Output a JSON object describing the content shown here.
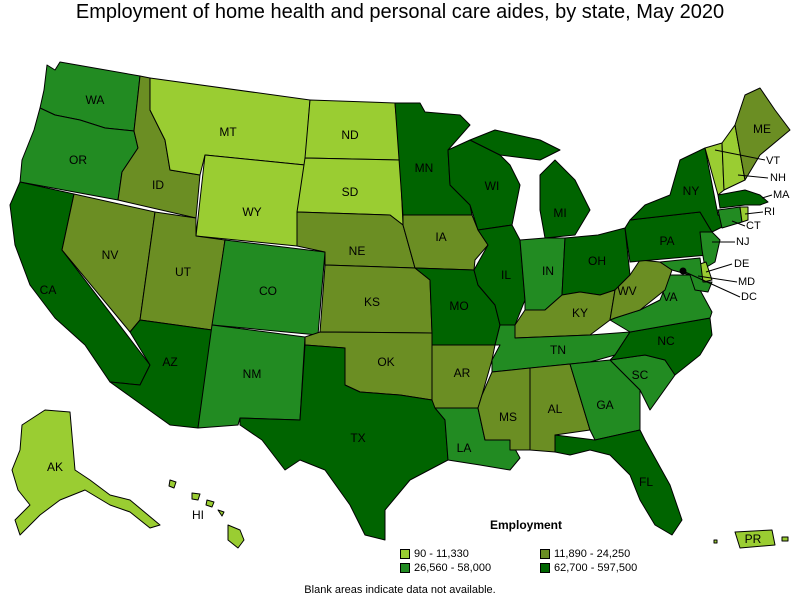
{
  "title": "Employment of home health and personal care aides, by state, May 2020",
  "legend": {
    "title": "Employment",
    "classes": [
      {
        "label": "90 - 11,330",
        "color": "#9acd32"
      },
      {
        "label": "11,890 - 24,250",
        "color": "#6b8e23"
      },
      {
        "label": "26,560 - 58,000",
        "color": "#228b22"
      },
      {
        "label": "62,700 - 597,500",
        "color": "#006400"
      }
    ]
  },
  "footnote": "Blank areas indicate data not available.",
  "states": [
    {
      "abbr": "WA",
      "class": 2
    },
    {
      "abbr": "OR",
      "class": 2
    },
    {
      "abbr": "CA",
      "class": 3
    },
    {
      "abbr": "ID",
      "class": 1
    },
    {
      "abbr": "NV",
      "class": 1
    },
    {
      "abbr": "MT",
      "class": 0
    },
    {
      "abbr": "WY",
      "class": 0
    },
    {
      "abbr": "UT",
      "class": 1
    },
    {
      "abbr": "AZ",
      "class": 3
    },
    {
      "abbr": "CO",
      "class": 2
    },
    {
      "abbr": "NM",
      "class": 2
    },
    {
      "abbr": "ND",
      "class": 0
    },
    {
      "abbr": "SD",
      "class": 0
    },
    {
      "abbr": "NE",
      "class": 1
    },
    {
      "abbr": "KS",
      "class": 1
    },
    {
      "abbr": "OK",
      "class": 1
    },
    {
      "abbr": "TX",
      "class": 3
    },
    {
      "abbr": "MN",
      "class": 3
    },
    {
      "abbr": "IA",
      "class": 1
    },
    {
      "abbr": "MO",
      "class": 3
    },
    {
      "abbr": "AR",
      "class": 1
    },
    {
      "abbr": "LA",
      "class": 2
    },
    {
      "abbr": "WI",
      "class": 3
    },
    {
      "abbr": "IL",
      "class": 3
    },
    {
      "abbr": "MI",
      "class": 3
    },
    {
      "abbr": "IN",
      "class": 2
    },
    {
      "abbr": "OH",
      "class": 3
    },
    {
      "abbr": "KY",
      "class": 1
    },
    {
      "abbr": "TN",
      "class": 2
    },
    {
      "abbr": "MS",
      "class": 1
    },
    {
      "abbr": "AL",
      "class": 1
    },
    {
      "abbr": "GA",
      "class": 2
    },
    {
      "abbr": "FL",
      "class": 3
    },
    {
      "abbr": "SC",
      "class": 2
    },
    {
      "abbr": "NC",
      "class": 3
    },
    {
      "abbr": "VA",
      "class": 2
    },
    {
      "abbr": "WV",
      "class": 1
    },
    {
      "abbr": "PA",
      "class": 3
    },
    {
      "abbr": "NY",
      "class": 3
    },
    {
      "abbr": "ME",
      "class": 1
    },
    {
      "abbr": "VT",
      "class": 0
    },
    {
      "abbr": "NH",
      "class": 0
    },
    {
      "abbr": "MA",
      "class": 3
    },
    {
      "abbr": "RI",
      "class": 0
    },
    {
      "abbr": "CT",
      "class": 2
    },
    {
      "abbr": "NJ",
      "class": 2
    },
    {
      "abbr": "DE",
      "class": 0
    },
    {
      "abbr": "MD",
      "class": 2
    },
    {
      "abbr": "DC",
      "class": 3
    },
    {
      "abbr": "AK",
      "class": 0
    },
    {
      "abbr": "HI",
      "class": 0
    },
    {
      "abbr": "PR",
      "class": 0
    }
  ]
}
